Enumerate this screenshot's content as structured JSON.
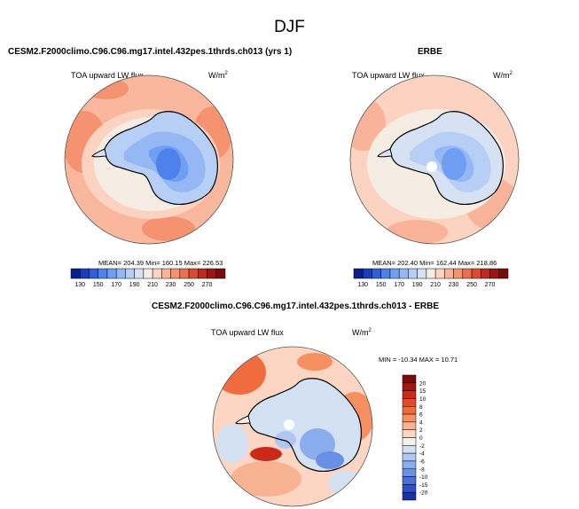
{
  "figure": {
    "title": "DJF"
  },
  "panels": [
    {
      "title": "CESM2.F2000climo.C96.C96.mg17.intel.432pes.1thrds.ch013 (yrs 1)",
      "variable": "TOA upward LW flux",
      "units": "W/m",
      "units_exp": "2",
      "stats": "MEAN= 204.39  Min= 160.15  Max= 226.53"
    },
    {
      "title": "ERBE",
      "variable": "TOA upward LW flux",
      "units": "W/m",
      "units_exp": "2",
      "stats": "MEAN= 202.40  Min= 162.44  Max= 218.86"
    },
    {
      "title": "CESM2.F2000climo.C96.C96.mg17.intel.432pes.1thrds.ch013 - ERBE",
      "variable": "TOA upward LW flux",
      "units": "W/m",
      "units_exp": "2",
      "stats": "MIN = -10.34  MAX =  10.71"
    }
  ],
  "colorbars": {
    "abs": {
      "labels": [
        "130",
        "150",
        "170",
        "190",
        "210",
        "230",
        "250",
        "270"
      ],
      "colors": [
        "#0a1d8c",
        "#1c3cbf",
        "#2f5fdb",
        "#4d82ec",
        "#6f9ef2",
        "#95b8f4",
        "#b7cff5",
        "#d6e2f4",
        "#f5ece4",
        "#fbd3c0",
        "#f9b398",
        "#f59370",
        "#ec6f4f",
        "#dc4a33",
        "#c02a1c",
        "#9c1613",
        "#7a0c0c"
      ]
    },
    "diff": {
      "labels": [
        "20",
        "15",
        "10",
        "8",
        "6",
        "4",
        "2",
        "0",
        "-2",
        "-4",
        "-6",
        "-8",
        "-10",
        "-15",
        "-20"
      ],
      "colors": [
        "#7a0c0c",
        "#a51511",
        "#cc2a18",
        "#e34a27",
        "#f06c3e",
        "#f69061",
        "#f9b393",
        "#fcd6c3",
        "#f6f0ec",
        "#d4e1f3",
        "#b0c8f1",
        "#8aaded",
        "#6a90e6",
        "#4a6fd9",
        "#2f4fc4",
        "#1b31a3"
      ]
    }
  }
}
